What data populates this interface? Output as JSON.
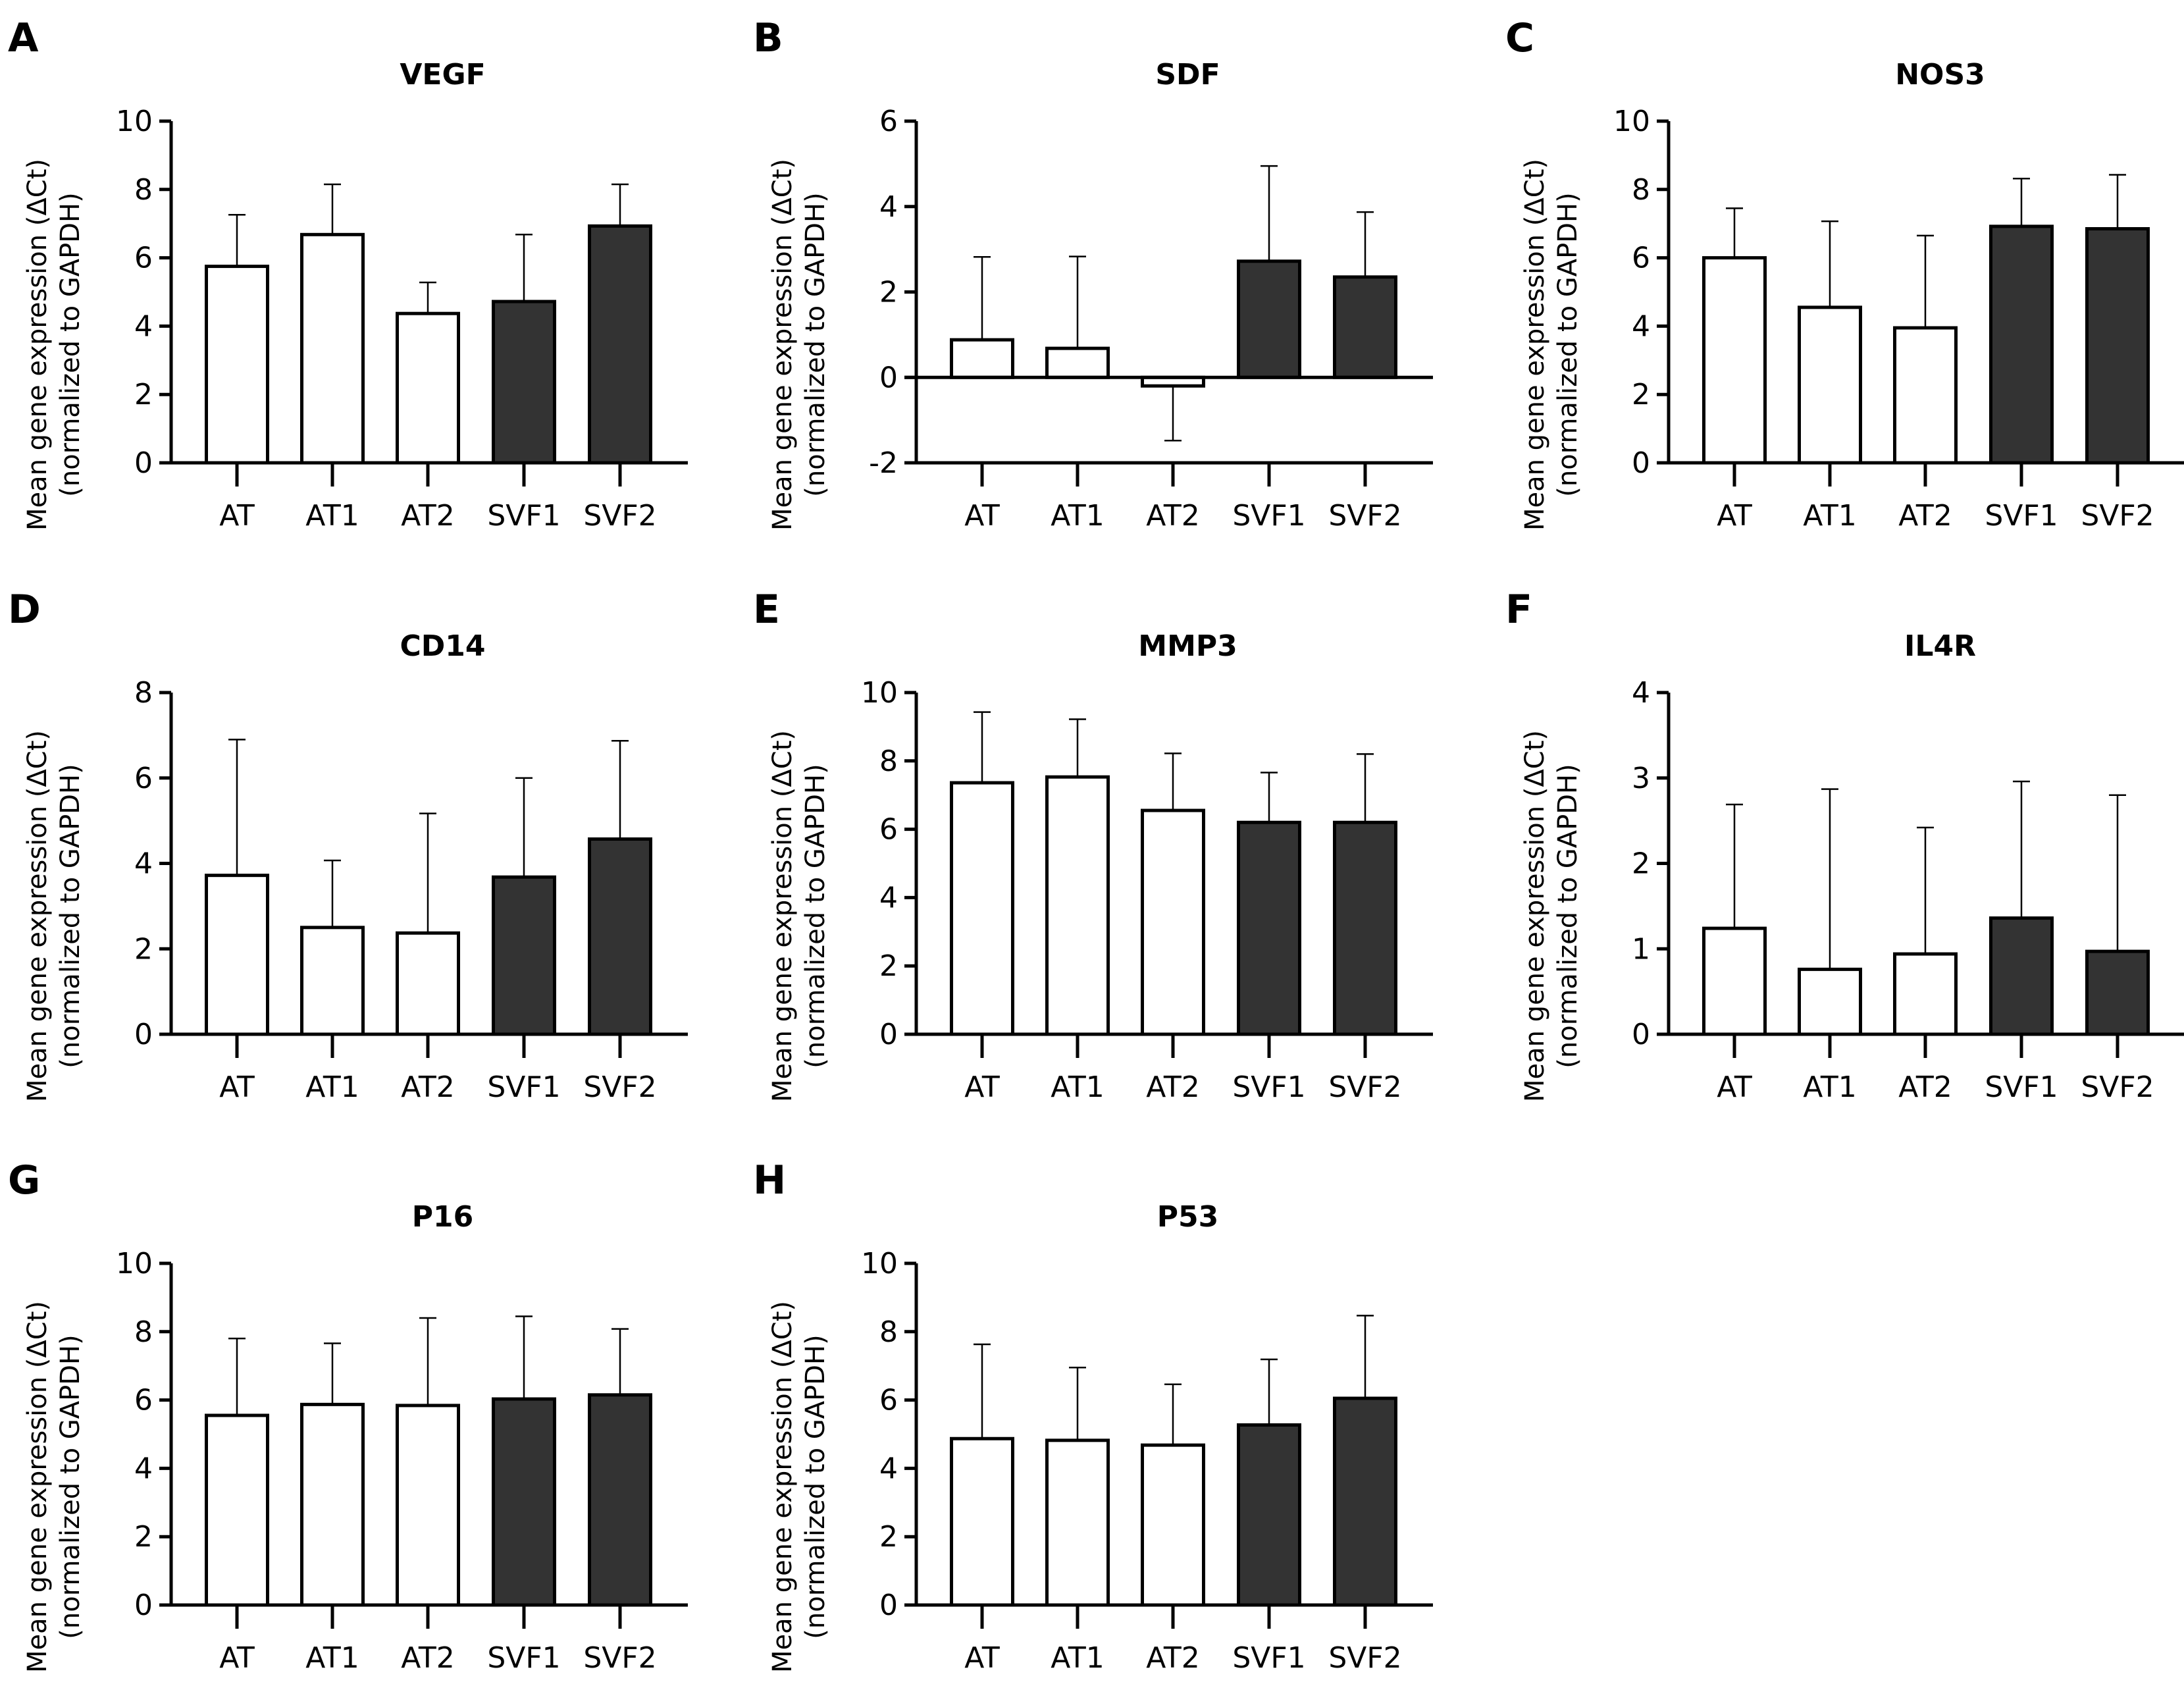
{
  "figure": {
    "colors": {
      "at_fill": "#ffffff",
      "svf_fill": "#333333",
      "stroke": "#000000"
    },
    "ylabel_line1": "Mean gene expression (ΔCt)",
    "ylabel_line2": "(normalized to GAPDH)"
  },
  "chart_data": [
    {
      "type": "bar",
      "panel": "A",
      "title": "VEGF",
      "categories": [
        "AT",
        "AT1",
        "AT2",
        "SVF1",
        "SVF2"
      ],
      "values": [
        5.75,
        6.68,
        4.37,
        4.72,
        6.93
      ],
      "error_upper": [
        7.26,
        8.15,
        5.28,
        6.68,
        8.15
      ],
      "groups": [
        "AT",
        "AT",
        "AT",
        "SVF",
        "SVF"
      ],
      "xlabel": "",
      "ylabel": "Mean gene expression (ΔCt) (normalized to GAPDH)",
      "ylim": [
        0,
        10
      ],
      "yticks": [
        0,
        2,
        4,
        6,
        8,
        10
      ],
      "grid": false
    },
    {
      "type": "bar",
      "panel": "B",
      "title": "SDF",
      "categories": [
        "AT",
        "AT1",
        "AT2",
        "SVF1",
        "SVF2"
      ],
      "values": [
        0.88,
        0.68,
        -0.2,
        2.72,
        2.35
      ],
      "error_upper": [
        2.82,
        2.83,
        -1.48,
        4.95,
        3.87
      ],
      "groups": [
        "AT",
        "AT",
        "AT",
        "SVF",
        "SVF"
      ],
      "xlabel": "",
      "ylabel": "Mean gene expression (ΔCt) (normalized to GAPDH)",
      "ylim": [
        -2,
        6
      ],
      "yticks": [
        -2,
        0,
        2,
        4,
        6
      ],
      "grid": false
    },
    {
      "type": "bar",
      "panel": "C",
      "title": "NOS3",
      "categories": [
        "AT",
        "AT1",
        "AT2",
        "SVF1",
        "SVF2"
      ],
      "values": [
        6.0,
        4.55,
        3.95,
        6.92,
        6.85
      ],
      "error_upper": [
        7.45,
        7.07,
        6.65,
        8.32,
        8.43
      ],
      "groups": [
        "AT",
        "AT",
        "AT",
        "SVF",
        "SVF"
      ],
      "xlabel": "",
      "ylabel": "Mean gene expression (ΔCt) (normalized to GAPDH)",
      "ylim": [
        0,
        10
      ],
      "yticks": [
        0,
        2,
        4,
        6,
        8,
        10
      ],
      "grid": false
    },
    {
      "type": "bar",
      "panel": "D",
      "title": "CD14",
      "categories": [
        "AT",
        "AT1",
        "AT2",
        "SVF1",
        "SVF2"
      ],
      "values": [
        3.72,
        2.5,
        2.37,
        3.68,
        4.57
      ],
      "error_upper": [
        6.9,
        4.07,
        5.17,
        6.0,
        6.87
      ],
      "groups": [
        "AT",
        "AT",
        "AT",
        "SVF",
        "SVF"
      ],
      "xlabel": "",
      "ylabel": "Mean gene expression (ΔCt) (normalized to GAPDH)",
      "ylim": [
        0,
        8
      ],
      "yticks": [
        0,
        2,
        4,
        6,
        8
      ],
      "grid": false
    },
    {
      "type": "bar",
      "panel": "E",
      "title": "MMP3",
      "categories": [
        "AT",
        "AT1",
        "AT2",
        "SVF1",
        "SVF2"
      ],
      "values": [
        7.36,
        7.53,
        6.55,
        6.2,
        6.2
      ],
      "error_upper": [
        9.43,
        9.22,
        8.22,
        7.66,
        8.2
      ],
      "groups": [
        "AT",
        "AT",
        "AT",
        "SVF",
        "SVF"
      ],
      "xlabel": "",
      "ylabel": "Mean gene expression (ΔCt) (normalized to GAPDH)",
      "ylim": [
        0,
        10
      ],
      "yticks": [
        0,
        2,
        4,
        6,
        8,
        10
      ],
      "grid": false
    },
    {
      "type": "bar",
      "panel": "F",
      "title": "IL4R",
      "categories": [
        "AT",
        "AT1",
        "AT2",
        "SVF1",
        "SVF2"
      ],
      "values": [
        1.24,
        0.76,
        0.94,
        1.36,
        0.97
      ],
      "error_upper": [
        2.69,
        2.87,
        2.42,
        2.96,
        2.8
      ],
      "groups": [
        "AT",
        "AT",
        "AT",
        "SVF",
        "SVF"
      ],
      "xlabel": "",
      "ylabel": "Mean gene expression (ΔCt) (normalized to GAPDH)",
      "ylim": [
        0,
        4
      ],
      "yticks": [
        0,
        1,
        2,
        3,
        4
      ],
      "grid": false
    },
    {
      "type": "bar",
      "panel": "G",
      "title": "P16",
      "categories": [
        "AT",
        "AT1",
        "AT2",
        "SVF1",
        "SVF2"
      ],
      "values": [
        5.55,
        5.87,
        5.84,
        6.03,
        6.15
      ],
      "error_upper": [
        7.8,
        7.66,
        8.4,
        8.45,
        8.08
      ],
      "groups": [
        "AT",
        "AT",
        "AT",
        "SVF",
        "SVF"
      ],
      "xlabel": "",
      "ylabel": "Mean gene expression (ΔCt) (normalized to GAPDH)",
      "ylim": [
        0,
        10
      ],
      "yticks": [
        0,
        2,
        4,
        6,
        8,
        10
      ],
      "grid": false
    },
    {
      "type": "bar",
      "panel": "H",
      "title": "P53",
      "categories": [
        "AT",
        "AT1",
        "AT2",
        "SVF1",
        "SVF2"
      ],
      "values": [
        4.87,
        4.82,
        4.68,
        5.27,
        6.05
      ],
      "error_upper": [
        7.63,
        6.95,
        6.46,
        7.19,
        8.47
      ],
      "groups": [
        "AT",
        "AT",
        "AT",
        "SVF",
        "SVF"
      ],
      "xlabel": "",
      "ylabel": "Mean gene expression (ΔCt) (normalized to GAPDH)",
      "ylim": [
        0,
        10
      ],
      "yticks": [
        0,
        2,
        4,
        6,
        8,
        10
      ],
      "grid": false
    }
  ]
}
